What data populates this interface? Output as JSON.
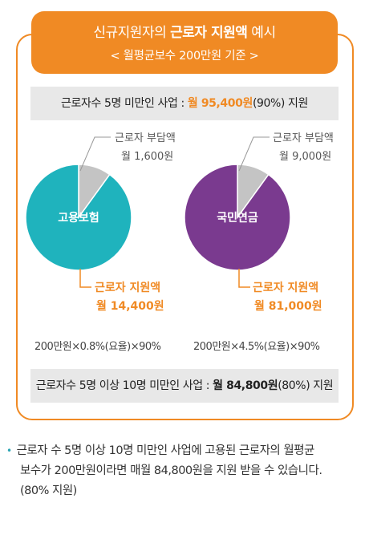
{
  "header": {
    "title_pre": "신규지원자의 ",
    "title_bold": "근로자 지원액",
    "title_post": " 예시",
    "subtitle": "< 월평균보수 200만원 기준 >"
  },
  "top_bar": {
    "pre": "근로자수 5명 미만인 사업 : ",
    "amount": "월 95,400원",
    "post": "(90%) 지원"
  },
  "bottom_bar": {
    "pre": "근로자수 5명 이상 10명 미만인 사업 : ",
    "amount": "월 84,800원",
    "post": "(80%) 지원"
  },
  "colors": {
    "accent": "#f08a24",
    "employment_insurance": "#1fb3bd",
    "national_pension": "#7a3a8f",
    "worker_burden": "#c4c4c4"
  },
  "chart_data": [
    {
      "type": "pie",
      "center_label": "고용보험",
      "slices": [
        {
          "label": "근로자 부담액",
          "amount_text": "월 1,600원",
          "value": 1600,
          "color": "#c4c4c4"
        },
        {
          "label": "근로자 지원액",
          "amount_text": "월 14,400원",
          "value": 14400,
          "color": "#1fb3bd"
        }
      ],
      "formula": "200만원×0.8%(요율)×90%"
    },
    {
      "type": "pie",
      "center_label": "국민연금",
      "slices": [
        {
          "label": "근로자 부담액",
          "amount_text": "월 9,000원",
          "value": 9000,
          "color": "#c4c4c4"
        },
        {
          "label": "근로자 지원액",
          "amount_text": "월 81,000원",
          "value": 81000,
          "color": "#7a3a8f"
        }
      ],
      "formula": "200만원×4.5%(요율)×90%"
    }
  ],
  "note": {
    "line1": "근로자 수 5명 이상 10명 미만인 사업에 고용된 근로자의 월평균",
    "line2": "보수가 200만원이라면 매월 84,800원을 지원 받을 수 있습니다.",
    "line3": "(80% 지원)"
  }
}
